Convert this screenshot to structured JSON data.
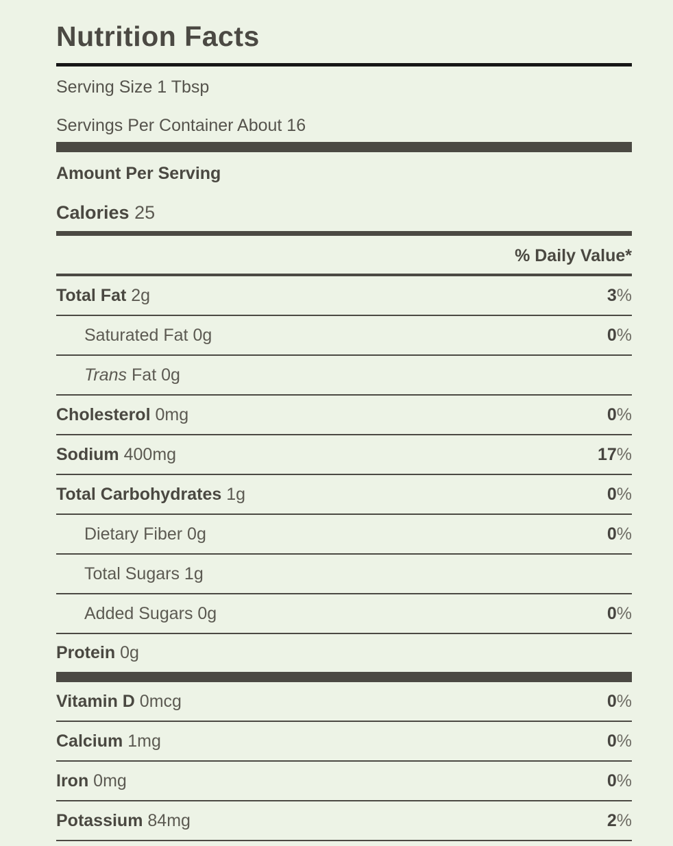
{
  "colors": {
    "background": "#edf3e6",
    "dark_olive": "#4b4943",
    "regular_text": "#5c5a52",
    "title_rule": "#161616"
  },
  "label": {
    "title": "Nutrition Facts",
    "serving_size": "Serving Size 1 Tbsp",
    "servings_per_container": "Servings Per Container About 16",
    "amount_per_serving": "Amount Per Serving",
    "calories": {
      "name": "Calories",
      "value": "25"
    },
    "daily_value_header": "% Daily Value*",
    "nutrients": [
      {
        "name": "Total Fat",
        "amount": "2g",
        "dv": "3",
        "pct": "%"
      },
      {
        "name": "Saturated Fat",
        "amount": "0g",
        "dv": "0",
        "pct": "%"
      },
      {
        "name_italic": "Trans",
        "amount": "Fat 0g"
      },
      {
        "name": "Cholesterol",
        "amount": "0mg",
        "dv": "0",
        "pct": "%"
      },
      {
        "name": "Sodium",
        "amount": "400mg",
        "dv": "17",
        "pct": "%"
      },
      {
        "name": "Total Carbohydrates",
        "amount": "1g",
        "dv": "0",
        "pct": "%"
      },
      {
        "name": "Dietary Fiber",
        "amount": "0g",
        "dv": "0",
        "pct": "%"
      },
      {
        "name": "Total Sugars",
        "amount": "1g"
      },
      {
        "name": "Added Sugars",
        "amount": "0g",
        "dv": "0",
        "pct": "%"
      },
      {
        "name": "Protein",
        "amount": "0g"
      }
    ],
    "micronutrients": [
      {
        "name": "Vitamin D",
        "amount": "0mcg",
        "dv": "0",
        "pct": "%"
      },
      {
        "name": "Calcium",
        "amount": "1mg",
        "dv": "0",
        "pct": "%"
      },
      {
        "name": "Iron",
        "amount": "0mg",
        "dv": "0",
        "pct": "%"
      },
      {
        "name": "Potassium",
        "amount": "84mg",
        "dv": "2",
        "pct": "%"
      }
    ]
  }
}
